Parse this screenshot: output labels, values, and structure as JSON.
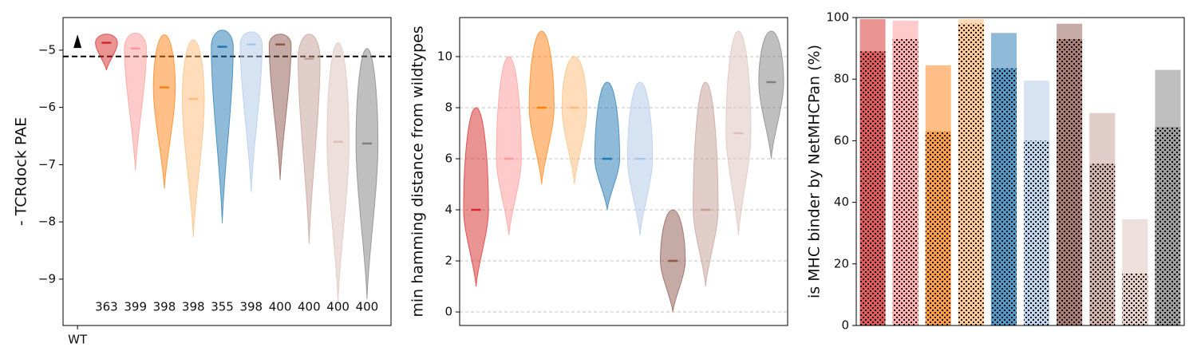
{
  "chart_data": [
    {
      "type": "violin",
      "ylabel": "- TCRdock PAE",
      "ylim": [
        -9.81,
        -4.43
      ],
      "yticks": [
        {
          "value": -9,
          "label": "−9"
        },
        {
          "value": -8,
          "label": "−8"
        },
        {
          "value": -7,
          "label": "−7"
        },
        {
          "value": -6,
          "label": "−6"
        },
        {
          "value": -5,
          "label": "−5"
        }
      ],
      "xlim": [
        -0.5,
        10.83
      ],
      "xticks": [
        {
          "value": 0,
          "label": "WT"
        }
      ],
      "reference_line": -5.11,
      "wt_value": -4.85,
      "x": [
        1,
        2,
        3,
        4,
        5,
        6,
        7,
        8,
        9,
        10
      ],
      "colors": [
        "#d62728",
        "#ff9896",
        "#ff7f0e",
        "#ffbb78",
        "#1f77b4",
        "#aec7e8",
        "#8c564b",
        "#c49c94",
        "#dbbfba",
        "#7f7f7f"
      ],
      "min": [
        -5.35,
        -7.1,
        -7.42,
        -8.27,
        -8.02,
        -7.48,
        -7.27,
        -8.38,
        -9.4,
        -9.35
      ],
      "median": [
        -4.87,
        -4.97,
        -5.65,
        -5.85,
        -4.94,
        -4.9,
        -4.9,
        -5.15,
        -6.6,
        -6.63
      ],
      "max": [
        -4.72,
        -4.7,
        -4.73,
        -4.82,
        -4.65,
        -4.68,
        -4.72,
        -4.72,
        -4.87,
        -4.97
      ],
      "counts": [
        363,
        399,
        398,
        398,
        355,
        398,
        400,
        400,
        400,
        400
      ]
    },
    {
      "type": "violin",
      "ylabel": "min hamming distance from wildtypes",
      "ylim": [
        -0.53,
        11.53
      ],
      "yticks": [
        0,
        2,
        4,
        6,
        8,
        10
      ],
      "grid": true,
      "colors": [
        "#d62728",
        "#ff9896",
        "#ff7f0e",
        "#ffbb78",
        "#1f77b4",
        "#aec7e8",
        "#8c564b",
        "#c49c94",
        "#dbbfba",
        "#7f7f7f"
      ],
      "min": [
        1,
        3,
        5,
        5,
        4,
        3,
        0,
        1,
        3,
        6
      ],
      "median": [
        4,
        6,
        8,
        8,
        6,
        6,
        2,
        4,
        7,
        9
      ],
      "max": [
        8,
        10,
        11,
        10,
        9,
        9,
        4,
        9,
        11,
        11
      ]
    },
    {
      "type": "bar",
      "ylabel": "is MHC binder by NetMHCPan (%)",
      "ylim": [
        0,
        100
      ],
      "yticks": [
        0,
        20,
        40,
        60,
        80,
        100
      ],
      "colors": [
        "#d62728",
        "#ff9896",
        "#ff7f0e",
        "#ffbb78",
        "#1f77b4",
        "#aec7e8",
        "#8c564b",
        "#c49c94",
        "#dbbfba",
        "#7f7f7f"
      ],
      "series": [
        {
          "values": [
            99.5,
            99,
            84.5,
            99.5,
            95,
            79.5,
            98,
            69,
            34.5,
            83
          ]
        },
        {
          "hatch": "dots",
          "values": [
            89,
            93,
            63,
            98,
            83.5,
            60,
            93,
            52.5,
            17,
            64.5
          ]
        }
      ]
    }
  ]
}
